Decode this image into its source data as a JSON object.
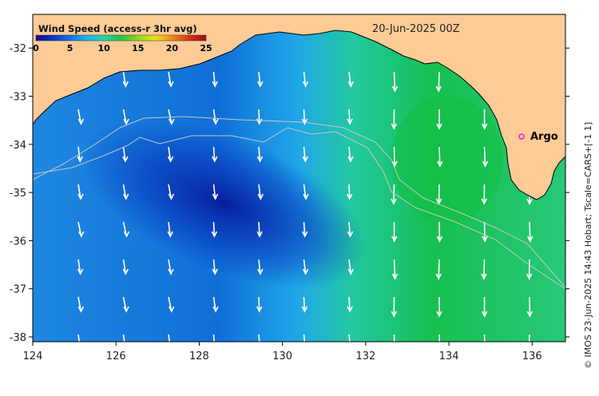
{
  "title": "Wind Speed (access-r 3hr avg)",
  "date": "20-Jun-2025 00Z",
  "credit": "© IMOS 23-Jun-2025 14:43 Hobart; Tscale=CARS+[-1 1]",
  "colorbar": {
    "ticks": [
      "0",
      "5",
      "10",
      "15",
      "20",
      "25"
    ],
    "min": 0,
    "max": 25,
    "colors": [
      "#1a0a8c",
      "#0033cc",
      "#0a72e6",
      "#1fb4ef",
      "#22d3a8",
      "#1ec34a",
      "#8fd817",
      "#e8e21a",
      "#f08c1a",
      "#d9301a",
      "#8c1010"
    ]
  },
  "map": {
    "lon_range": [
      124,
      136.8
    ],
    "lat_range": [
      -38.1,
      -31.3
    ],
    "x_ticks": [
      "124",
      "126",
      "128",
      "130",
      "132",
      "134",
      "136"
    ],
    "y_ticks": [
      "-32",
      "-33",
      "-34",
      "-35",
      "-36",
      "-37",
      "-38"
    ],
    "land_color": "#fdcb96",
    "label": {
      "text": "Argo",
      "lon": 135.5,
      "lat": -33.6,
      "marker_color": "#e020e0"
    }
  }
}
